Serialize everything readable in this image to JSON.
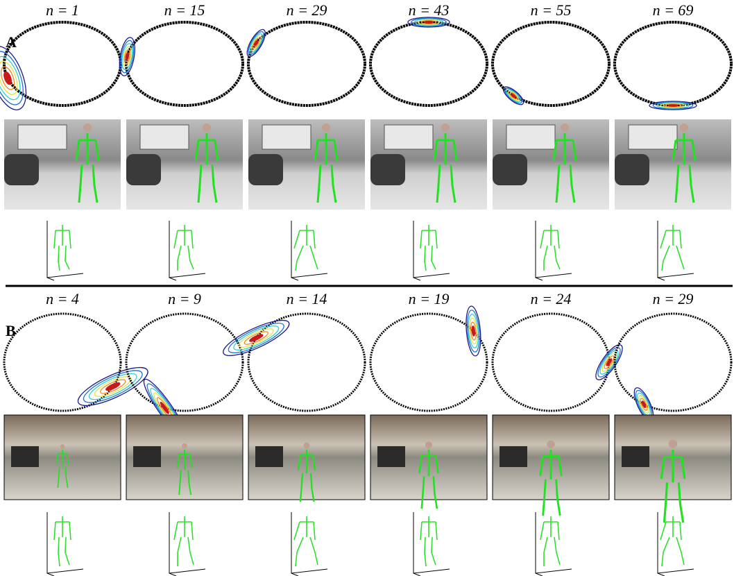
{
  "panels": [
    {
      "label": "A",
      "frames": [
        "n = 1",
        "n = 15",
        "n = 29",
        "n = 43",
        "n = 55",
        "n = 69"
      ]
    },
    {
      "label": "B",
      "frames": [
        "n = 4",
        "n = 9",
        "n = 14",
        "n = 19",
        "n = 24",
        "n = 29"
      ]
    }
  ]
}
